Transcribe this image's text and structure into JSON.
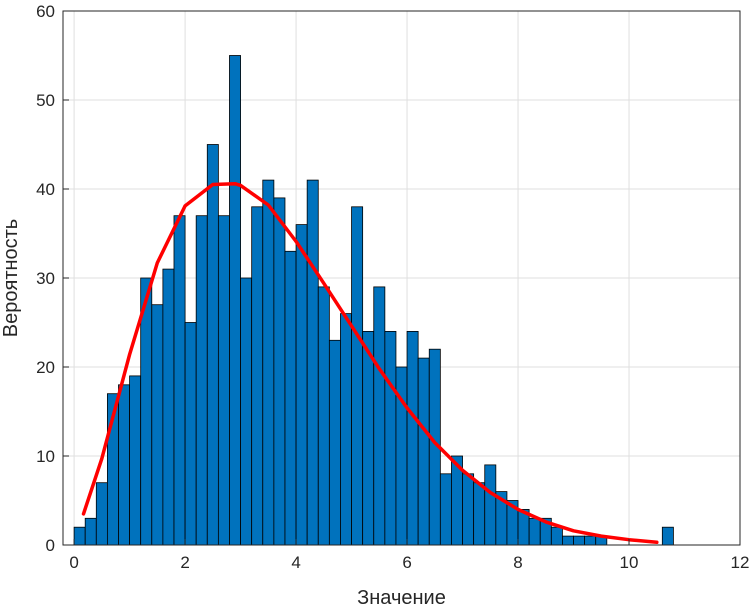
{
  "chart_data": {
    "type": "bar",
    "title": "",
    "xlabel": "Значение",
    "ylabel": "Вероятность",
    "xlim": [
      -0.2,
      12
    ],
    "ylim": [
      0,
      60
    ],
    "xticks": [
      0,
      2,
      4,
      6,
      8,
      10,
      12
    ],
    "yticks": [
      0,
      10,
      20,
      30,
      40,
      50,
      60
    ],
    "grid": true,
    "bar_color": "#0072BD",
    "bar_edge_color": "#000000",
    "bin_start": 0,
    "bin_width": 0.2,
    "counts": [
      2,
      3,
      7,
      17,
      18,
      19,
      30,
      27,
      31,
      37,
      25,
      37,
      45,
      37,
      55,
      30,
      38,
      41,
      39,
      33,
      36,
      41,
      29,
      23,
      26,
      38,
      24,
      29,
      24,
      20,
      24,
      21,
      22,
      8,
      10,
      8,
      7,
      9,
      6,
      5,
      4,
      3,
      3,
      2,
      1,
      1,
      1,
      1,
      0,
      0,
      0,
      0,
      0,
      2
    ],
    "fit_curve": {
      "type": "line",
      "color": "#FF0000",
      "x": [
        0.17,
        0.5,
        1.0,
        1.5,
        2.0,
        2.5,
        2.9,
        3.0,
        3.5,
        4.0,
        4.5,
        5.0,
        5.5,
        6.0,
        6.5,
        7.0,
        7.5,
        8.0,
        8.5,
        9.0,
        9.5,
        10.0,
        10.5
      ],
      "y": [
        3.5,
        9.7,
        21.4,
        31.7,
        38.1,
        40.5,
        40.6,
        40.4,
        38.2,
        34.1,
        29.4,
        24.6,
        19.8,
        15.4,
        11.5,
        8.4,
        5.9,
        4.0,
        2.6,
        1.6,
        1.0,
        0.6,
        0.3
      ]
    }
  }
}
